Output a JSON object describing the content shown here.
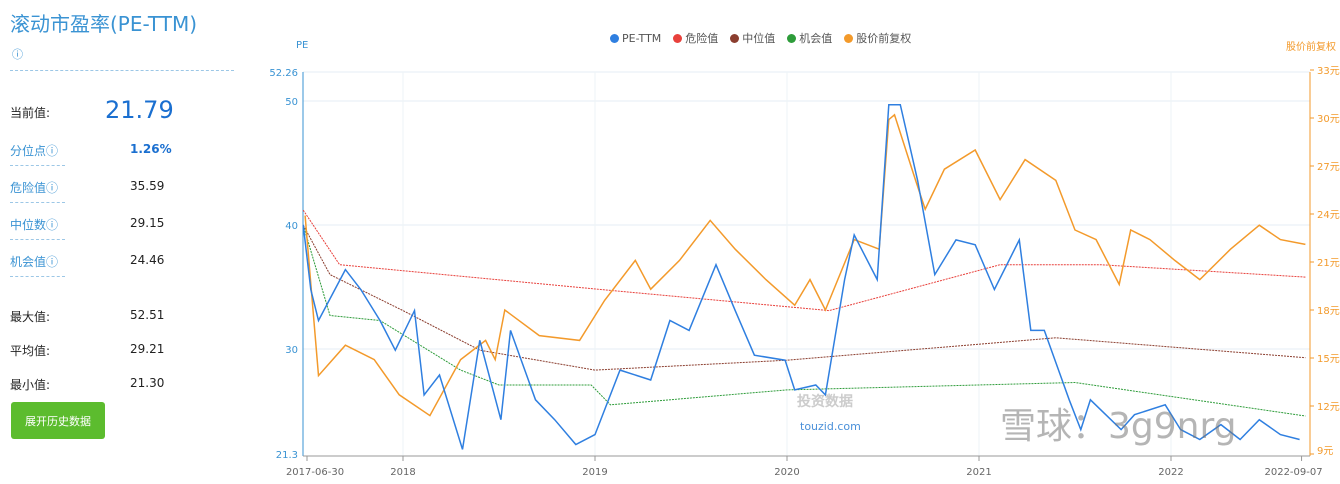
{
  "panel": {
    "title": "滚动市盈率(PE-TTM)",
    "info_icon": "ⓘ",
    "current_label": "当前值:",
    "current_value": "21.79",
    "rows": [
      {
        "label": "分位点ⓘ",
        "value": "1.26%"
      },
      {
        "label": "危险值ⓘ",
        "value": "35.59"
      },
      {
        "label": "中位数ⓘ",
        "value": "29.15"
      },
      {
        "label": "机会值ⓘ",
        "value": "24.46"
      }
    ],
    "stats": [
      {
        "label": "最大值:",
        "value": "52.51"
      },
      {
        "label": "平均值:",
        "value": "29.21"
      },
      {
        "label": "最小值:",
        "value": "21.30"
      }
    ],
    "button": "展开历史数据"
  },
  "watermarks": {
    "site_cn": "投资数据",
    "site": "touzid.com",
    "xueqiu": "雪球：3g9nrg"
  },
  "chart_data": {
    "type": "line",
    "left_axis_label": "PE",
    "right_axis_label": "股价前复权",
    "ylim": [
      21.3,
      52.26
    ],
    "y_ticks": [
      "52.26",
      "50",
      "40",
      "30",
      "21.3"
    ],
    "y2lim": [
      9,
      33
    ],
    "y2_ticks": [
      "33元",
      "30元",
      "27元",
      "24元",
      "21元",
      "18元",
      "15元",
      "12元",
      "9元"
    ],
    "xlim": [
      2017.5,
      2022.68
    ],
    "x_ticks": [
      {
        "label": "2017-06-30",
        "x": 2017.5
      },
      {
        "label": "2018",
        "x": 2018.0
      },
      {
        "label": "2019",
        "x": 2019.0
      },
      {
        "label": "2020",
        "x": 2020.0
      },
      {
        "label": "2021",
        "x": 2021.0
      },
      {
        "label": "2022",
        "x": 2022.0
      },
      {
        "label": "2022-09-07",
        "x": 2022.68
      }
    ],
    "colors": {
      "pe": "#2f7fe0",
      "danger": "#e8413c",
      "median": "#8b3e2f",
      "opportunity": "#2e9c3a",
      "price": "#f39a2b"
    },
    "series": [
      {
        "name": "PE-TTM",
        "key": "pe",
        "axis": "left",
        "points": [
          [
            2017.48,
            40.0
          ],
          [
            2017.52,
            34.8
          ],
          [
            2017.56,
            32.3
          ],
          [
            2017.7,
            36.4
          ],
          [
            2017.78,
            34.8
          ],
          [
            2017.88,
            32.3
          ],
          [
            2017.96,
            29.9
          ],
          [
            2018.06,
            33.1
          ],
          [
            2018.11,
            26.3
          ],
          [
            2018.19,
            27.9
          ],
          [
            2018.31,
            21.9
          ],
          [
            2018.4,
            30.7
          ],
          [
            2018.51,
            24.3
          ],
          [
            2018.56,
            31.5
          ],
          [
            2018.69,
            25.9
          ],
          [
            2018.79,
            24.3
          ],
          [
            2018.9,
            22.3
          ],
          [
            2019.0,
            23.1
          ],
          [
            2019.13,
            28.3
          ],
          [
            2019.29,
            27.5
          ],
          [
            2019.39,
            32.3
          ],
          [
            2019.49,
            31.5
          ],
          [
            2019.63,
            36.8
          ],
          [
            2019.73,
            33.1
          ],
          [
            2019.83,
            29.5
          ],
          [
            2019.99,
            29.1
          ],
          [
            2020.04,
            26.7
          ],
          [
            2020.15,
            27.1
          ],
          [
            2020.2,
            26.3
          ],
          [
            2020.3,
            35.6
          ],
          [
            2020.35,
            39.2
          ],
          [
            2020.47,
            35.6
          ],
          [
            2020.53,
            49.7
          ],
          [
            2020.59,
            49.7
          ],
          [
            2020.68,
            43.6
          ],
          [
            2020.77,
            36.0
          ],
          [
            2020.88,
            38.8
          ],
          [
            2020.98,
            38.4
          ],
          [
            2021.08,
            34.8
          ],
          [
            2021.21,
            38.8
          ],
          [
            2021.27,
            31.5
          ],
          [
            2021.34,
            31.5
          ],
          [
            2021.47,
            25.9
          ],
          [
            2021.53,
            23.5
          ],
          [
            2021.58,
            25.9
          ],
          [
            2021.74,
            23.5
          ],
          [
            2021.81,
            24.7
          ],
          [
            2021.97,
            25.5
          ],
          [
            2022.05,
            23.5
          ],
          [
            2022.15,
            22.7
          ],
          [
            2022.26,
            23.9
          ],
          [
            2022.36,
            22.7
          ],
          [
            2022.46,
            24.3
          ],
          [
            2022.57,
            23.1
          ],
          [
            2022.67,
            22.7
          ]
        ]
      },
      {
        "name": "危险值",
        "key": "danger",
        "axis": "left",
        "points": [
          [
            2017.48,
            41.2
          ],
          [
            2017.67,
            36.8
          ],
          [
            2019.03,
            34.8
          ],
          [
            2020.22,
            33.1
          ],
          [
            2021.11,
            36.8
          ],
          [
            2021.63,
            36.8
          ],
          [
            2022.7,
            35.8
          ]
        ]
      },
      {
        "name": "中位值",
        "key": "median",
        "axis": "left",
        "points": [
          [
            2017.48,
            40.0
          ],
          [
            2017.62,
            36.0
          ],
          [
            2018.0,
            33.1
          ],
          [
            2018.4,
            29.9
          ],
          [
            2019.0,
            28.3
          ],
          [
            2020.0,
            29.1
          ],
          [
            2021.4,
            30.9
          ],
          [
            2022.7,
            29.3
          ]
        ]
      },
      {
        "name": "机会值",
        "key": "opportunity",
        "axis": "left",
        "points": [
          [
            2017.48,
            40.0
          ],
          [
            2017.62,
            32.7
          ],
          [
            2017.88,
            32.3
          ],
          [
            2018.3,
            28.3
          ],
          [
            2018.5,
            27.1
          ],
          [
            2018.98,
            27.1
          ],
          [
            2019.08,
            25.5
          ],
          [
            2020.0,
            26.7
          ],
          [
            2021.5,
            27.3
          ],
          [
            2022.7,
            24.6
          ]
        ]
      },
      {
        "name": "股价前复权",
        "key": "price",
        "axis": "right",
        "points": [
          [
            2017.49,
            23.9
          ],
          [
            2017.56,
            13.9
          ],
          [
            2017.7,
            15.8
          ],
          [
            2017.85,
            14.9
          ],
          [
            2017.98,
            12.7
          ],
          [
            2018.14,
            11.4
          ],
          [
            2018.3,
            14.9
          ],
          [
            2018.43,
            16.1
          ],
          [
            2018.48,
            14.9
          ],
          [
            2018.53,
            18.0
          ],
          [
            2018.71,
            16.4
          ],
          [
            2018.92,
            16.1
          ],
          [
            2019.05,
            18.6
          ],
          [
            2019.21,
            21.1
          ],
          [
            2019.29,
            19.3
          ],
          [
            2019.44,
            21.1
          ],
          [
            2019.6,
            23.6
          ],
          [
            2019.73,
            21.8
          ],
          [
            2019.89,
            19.9
          ],
          [
            2020.04,
            18.3
          ],
          [
            2020.12,
            19.9
          ],
          [
            2020.2,
            18.0
          ],
          [
            2020.35,
            22.4
          ],
          [
            2020.48,
            21.8
          ],
          [
            2020.53,
            29.9
          ],
          [
            2020.56,
            30.2
          ],
          [
            2020.67,
            26.1
          ],
          [
            2020.72,
            24.3
          ],
          [
            2020.82,
            26.8
          ],
          [
            2020.98,
            28.0
          ],
          [
            2021.11,
            24.9
          ],
          [
            2021.24,
            27.4
          ],
          [
            2021.4,
            26.1
          ],
          [
            2021.5,
            23.0
          ],
          [
            2021.61,
            22.4
          ],
          [
            2021.73,
            19.6
          ],
          [
            2021.79,
            23.0
          ],
          [
            2021.89,
            22.4
          ],
          [
            2022.02,
            21.1
          ],
          [
            2022.15,
            19.9
          ],
          [
            2022.31,
            21.8
          ],
          [
            2022.46,
            23.3
          ],
          [
            2022.57,
            22.4
          ],
          [
            2022.7,
            22.1
          ]
        ]
      }
    ]
  }
}
